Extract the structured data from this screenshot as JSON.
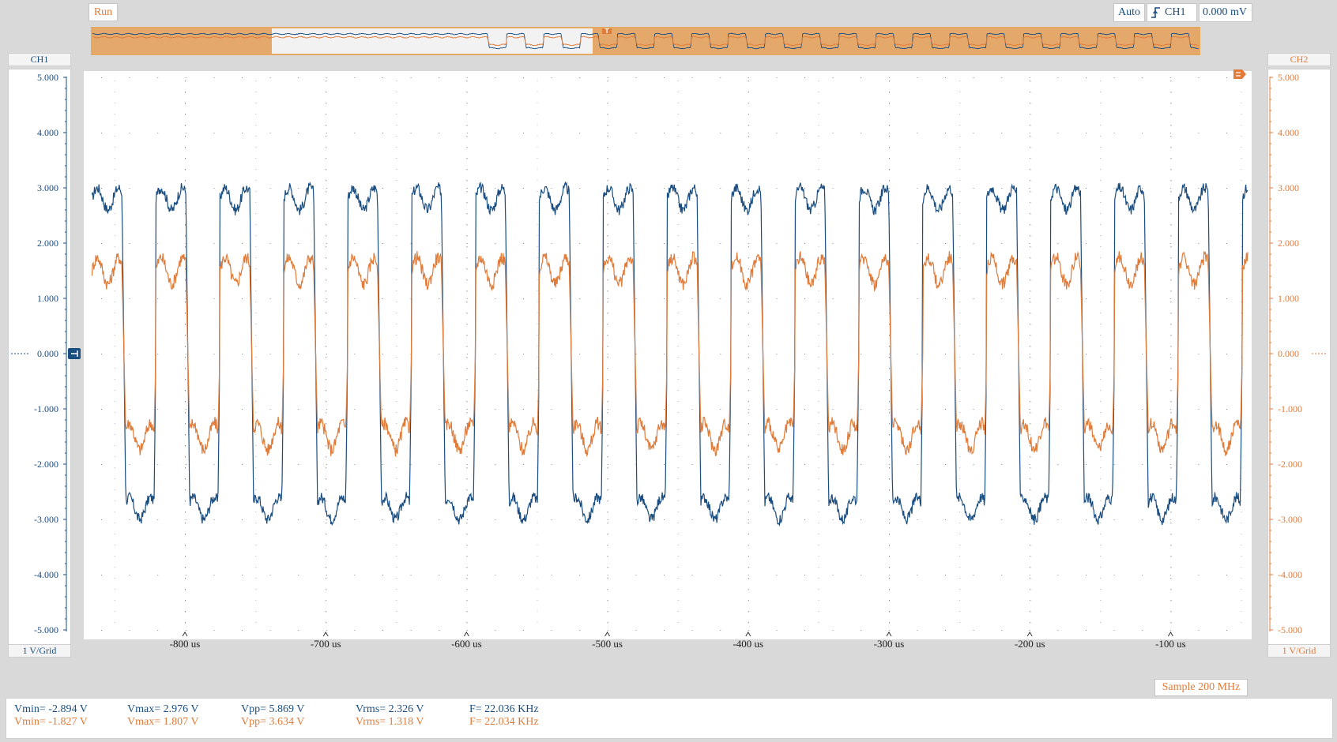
{
  "toolbar": {
    "run_label": "Run",
    "trigger_mode": "Auto",
    "trigger_source": "CH1",
    "trigger_level": "0.000 mV",
    "trigger_edge_icon": "rising-edge-icon"
  },
  "channels": {
    "ch1": {
      "name": "CH1",
      "grid_label": "1 V/Grid",
      "color": "#1a4d80"
    },
    "ch2": {
      "name": "CH2",
      "grid_label": "1 V/Grid",
      "color": "#e07b39"
    }
  },
  "y_axis": {
    "ticks": [
      5,
      4,
      3,
      2,
      1,
      0,
      -1,
      -2,
      -3,
      -4,
      -5
    ],
    "tick_labels": [
      "5.000",
      "4.000",
      "3.000",
      "2.000",
      "1.000",
      "0.000",
      "-1.000",
      "-2.000",
      "-3.000",
      "-4.000",
      "-5.000"
    ]
  },
  "x_axis": {
    "unit": "us",
    "ticks": [
      -800,
      -700,
      -600,
      -500,
      -400,
      -300,
      -200,
      -100
    ],
    "tick_labels": [
      "-800 us",
      "-700 us",
      "-600 us",
      "-500 us",
      "-400 us",
      "-300 us",
      "-200 us",
      "-100 us"
    ]
  },
  "sample_rate": "Sample 200 MHz",
  "measurements": {
    "ch1": {
      "vmin": "Vmin= -2.894 V",
      "vmax": "Vmax= 2.976 V",
      "vpp": "Vpp= 5.869 V",
      "vrms": "Vrms= 2.326 V",
      "freq": "F= 22.036 KHz"
    },
    "ch2": {
      "vmin": "Vmin= -1.827 V",
      "vmax": "Vmax= 1.807 V",
      "vpp": "Vpp= 3.634 V",
      "vrms": "Vrms= 1.318 V",
      "freq": "F= 22.034 KHz"
    }
  },
  "chart_data": {
    "type": "line",
    "x_range": [
      -866,
      -45
    ],
    "ylim": [
      -5,
      5
    ],
    "grid": true,
    "series": [
      {
        "name": "CH1",
        "color": "#1a4d80",
        "amplitude": 2.8,
        "frequency_khz": 22.036,
        "ripple": 0.25
      },
      {
        "name": "CH2",
        "color": "#e07b39",
        "amplitude": 1.5,
        "frequency_khz": 22.034,
        "ripple": 0.3
      }
    ]
  }
}
